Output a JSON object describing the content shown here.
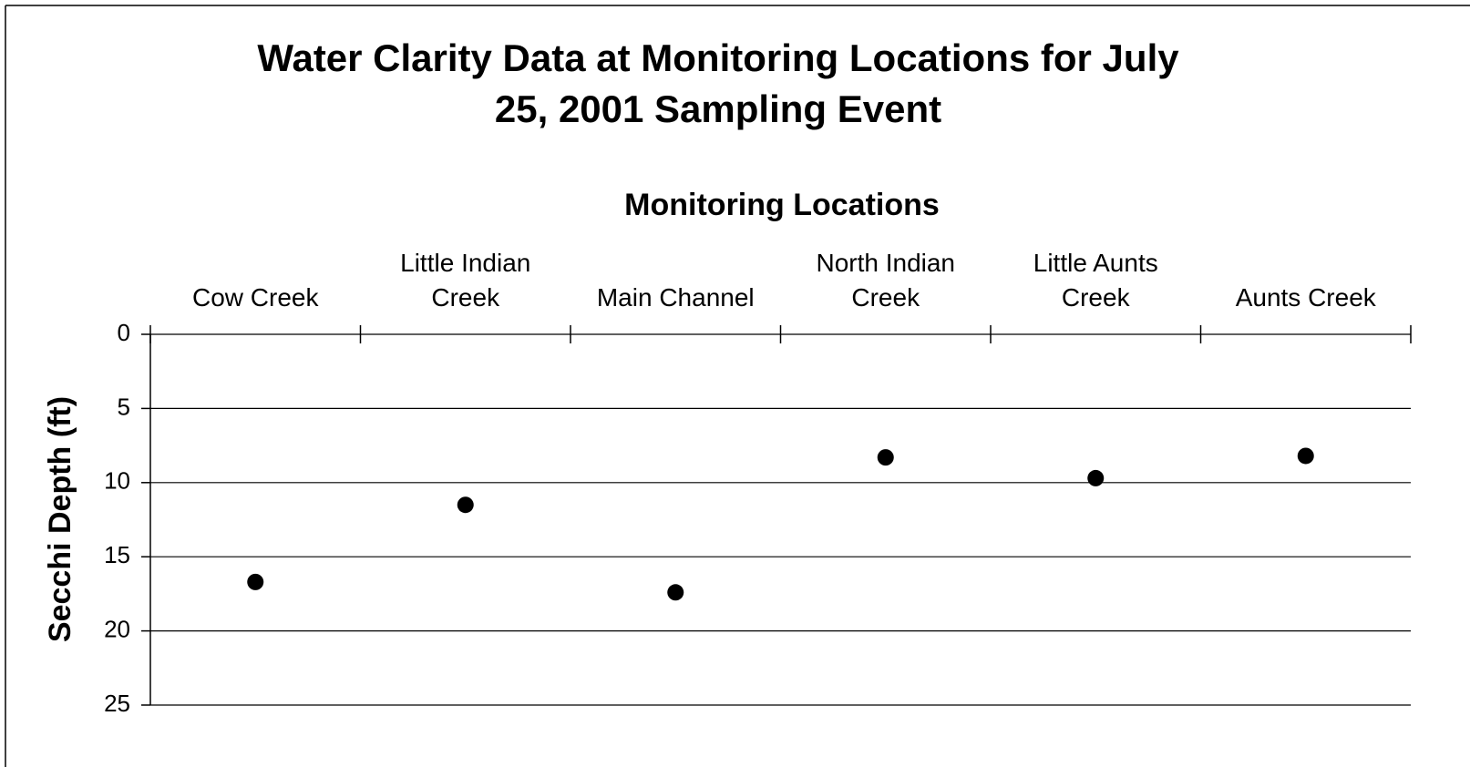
{
  "chart_data": {
    "type": "scatter",
    "title": "Water Clarity Data at Monitoring Locations for July 25, 2001 Sampling Event",
    "x_label": "Monitoring Locations",
    "y_label": "Secchi Depth (ft)",
    "categories": [
      "Cow Creek",
      "Little Indian Creek",
      "Main Channel",
      "North Indian Creek",
      "Little Aunts Creek",
      "Aunts Creek"
    ],
    "values": [
      16.7,
      11.5,
      17.4,
      8.3,
      9.7,
      8.2
    ],
    "color": "#000000",
    "ylim": [
      0,
      25
    ],
    "yticks": [
      0,
      5,
      10,
      15,
      20,
      25
    ],
    "y_inverted": true,
    "grid": true
  }
}
